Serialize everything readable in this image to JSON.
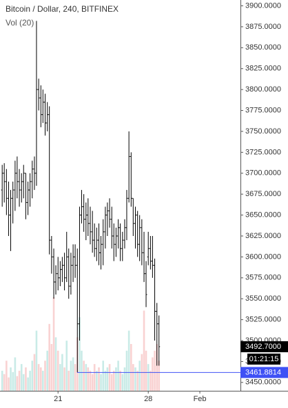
{
  "chart_data": {
    "type": "ohlc",
    "title": "Bitcoin / Dollar, 240, BITFINEX",
    "subtitle": "Vol (20)",
    "x": [
      16.67,
      16.83,
      17,
      17.17,
      17.33,
      17.5,
      17.67,
      17.83,
      18,
      18.17,
      18.33,
      18.5,
      18.67,
      18.83,
      19,
      19.17,
      19.33,
      19.5,
      19.67,
      19.83,
      20,
      20.17,
      20.33,
      20.5,
      20.67,
      20.83,
      21,
      21.17,
      21.33,
      21.5,
      21.67,
      21.83,
      22,
      22.17,
      22.33,
      22.5,
      22.67,
      22.83,
      23,
      23.17,
      23.33,
      23.5,
      23.67,
      23.83,
      24,
      24.17,
      24.33,
      24.5,
      24.67,
      24.83,
      25,
      25.17,
      25.33,
      25.5,
      25.67,
      25.83,
      26,
      26.17,
      26.33,
      26.5,
      26.67,
      26.83,
      27,
      27.17,
      27.33,
      27.5,
      27.67,
      27.83,
      28,
      28.17,
      28.33,
      28.5,
      28.67,
      28.83
    ],
    "open": [
      3680,
      3700,
      3690,
      3670,
      3650,
      3670,
      3680,
      3700,
      3690,
      3680,
      3690,
      3700,
      3665,
      3680,
      3690,
      3705,
      3700,
      3800,
      3790,
      3770,
      3785,
      3760,
      3770,
      3620,
      3600,
      3570,
      3580,
      3575,
      3585,
      3590,
      3575,
      3600,
      3565,
      3590,
      3600,
      3590,
      3520,
      3650,
      3660,
      3645,
      3650,
      3640,
      3630,
      3620,
      3610,
      3620,
      3605,
      3615,
      3630,
      3650,
      3655,
      3645,
      3625,
      3615,
      3625,
      3635,
      3610,
      3620,
      3635,
      3670,
      3720,
      3670,
      3640,
      3650,
      3615,
      3635,
      3605,
      3580,
      3600,
      3610,
      3595,
      3590,
      3535,
      3520
    ],
    "high": [
      3710,
      3712,
      3705,
      3690,
      3680,
      3690,
      3715,
      3720,
      3705,
      3700,
      3710,
      3700,
      3690,
      3700,
      3715,
      3720,
      3882,
      3813,
      3805,
      3800,
      3795,
      3785,
      3780,
      3625,
      3610,
      3590,
      3600,
      3595,
      3600,
      3605,
      3630,
      3610,
      3605,
      3615,
      3615,
      3610,
      3660,
      3680,
      3675,
      3665,
      3670,
      3660,
      3655,
      3640,
      3635,
      3640,
      3625,
      3645,
      3660,
      3665,
      3670,
      3660,
      3640,
      3635,
      3645,
      3640,
      3630,
      3645,
      3680,
      3750,
      3725,
      3670,
      3660,
      3655,
      3650,
      3645,
      3630,
      3595,
      3630,
      3625,
      3625,
      3598,
      3545,
      3530
    ],
    "low": [
      3660,
      3665,
      3650,
      3625,
      3607,
      3640,
      3655,
      3670,
      3660,
      3665,
      3670,
      3645,
      3650,
      3660,
      3670,
      3680,
      3685,
      3775,
      3755,
      3760,
      3745,
      3750,
      3603,
      3580,
      3550,
      3555,
      3560,
      3565,
      3570,
      3560,
      3570,
      3550,
      3555,
      3570,
      3575,
      3462,
      3500,
      3640,
      3630,
      3620,
      3625,
      3615,
      3605,
      3600,
      3595,
      3590,
      3585,
      3590,
      3610,
      3625,
      3635,
      3610,
      3595,
      3600,
      3610,
      3595,
      3595,
      3610,
      3620,
      3665,
      3660,
      3625,
      3610,
      3600,
      3595,
      3590,
      3570,
      3540,
      3590,
      3585,
      3575,
      3500,
      3470,
      3470
    ],
    "close": [
      3700,
      3690,
      3670,
      3650,
      3670,
      3680,
      3700,
      3690,
      3680,
      3690,
      3700,
      3665,
      3680,
      3690,
      3705,
      3700,
      3800,
      3790,
      3770,
      3785,
      3760,
      3770,
      3620,
      3600,
      3570,
      3580,
      3575,
      3585,
      3590,
      3575,
      3600,
      3565,
      3590,
      3600,
      3590,
      3520,
      3650,
      3660,
      3645,
      3650,
      3640,
      3630,
      3620,
      3610,
      3620,
      3605,
      3615,
      3630,
      3650,
      3655,
      3645,
      3625,
      3615,
      3625,
      3635,
      3610,
      3620,
      3635,
      3670,
      3720,
      3670,
      3640,
      3650,
      3615,
      3635,
      3605,
      3580,
      3555,
      3610,
      3595,
      3590,
      3535,
      3520,
      3492.7
    ],
    "volume": [
      30,
      25,
      45,
      20,
      35,
      28,
      50,
      22,
      30,
      40,
      25,
      35,
      20,
      30,
      45,
      55,
      90,
      40,
      35,
      30,
      45,
      60,
      100,
      70,
      140,
      80,
      60,
      40,
      55,
      35,
      75,
      30,
      45,
      50,
      40,
      80,
      110,
      60,
      45,
      40,
      35,
      30,
      25,
      40,
      30,
      35,
      25,
      45,
      30,
      35,
      40,
      25,
      30,
      35,
      45,
      30,
      25,
      35,
      60,
      90,
      70,
      40,
      35,
      30,
      45,
      55,
      120,
      60,
      40,
      30,
      50,
      60,
      70,
      45
    ],
    "bar_color": "#000000",
    "up_volume_color": "#c9ebe7",
    "down_volume_color": "#f9d2d2",
    "xlim": [
      16.5,
      35.15
    ],
    "xticks": [
      {
        "value": 21,
        "label": "21"
      },
      {
        "value": 28,
        "label": "28"
      },
      {
        "value": 32,
        "label": "Feb"
      }
    ],
    "ylim": [
      3440,
      3907
    ],
    "yticks": [
      {
        "value": 3450,
        "label": "3450.0000"
      },
      {
        "value": 3475,
        "label": "3475.0000"
      },
      {
        "value": 3500,
        "label": "3500.0000"
      },
      {
        "value": 3525,
        "label": "3525.0000"
      },
      {
        "value": 3550,
        "label": "3550.0000"
      },
      {
        "value": 3575,
        "label": "3575.0000"
      },
      {
        "value": 3600,
        "label": "3600.0000"
      },
      {
        "value": 3625,
        "label": "3625.0000"
      },
      {
        "value": 3650,
        "label": "3650.0000"
      },
      {
        "value": 3675,
        "label": "3675.0000"
      },
      {
        "value": 3700,
        "label": "3700.0000"
      },
      {
        "value": 3725,
        "label": "3725.0000"
      },
      {
        "value": 3750,
        "label": "3750.0000"
      },
      {
        "value": 3775,
        "label": "3775.0000"
      },
      {
        "value": 3800,
        "label": "3800.0000"
      },
      {
        "value": 3825,
        "label": "3825.0000"
      },
      {
        "value": 3850,
        "label": "3850.0000"
      },
      {
        "value": 3875,
        "label": "3875.0000"
      },
      {
        "value": 3900,
        "label": "3900.0000"
      }
    ],
    "last_price": {
      "value": 3492.7,
      "label": "3492.7000"
    },
    "countdown": "01:21:15",
    "price_line": {
      "value": 3461.8814,
      "label": "3461.8814",
      "color": "#3f51f5"
    }
  }
}
